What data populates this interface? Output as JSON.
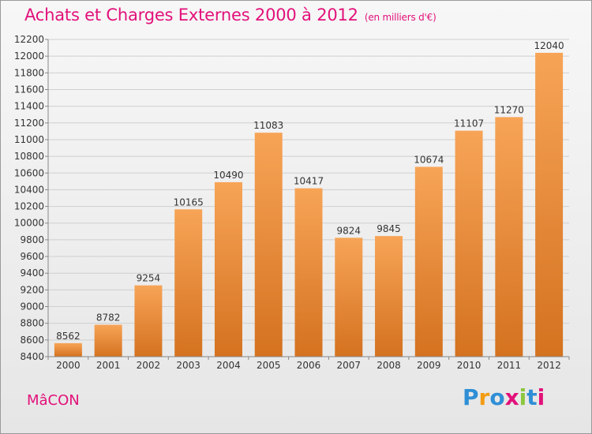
{
  "header": {
    "title": "Achats et Charges Externes 2000 à 2012",
    "unit": "(en milliers d'€)"
  },
  "footer": {
    "city": "MâCON",
    "brand": "Proxiti",
    "brand_letters": [
      "P",
      "r",
      "o",
      "x",
      "i",
      "t",
      "i"
    ],
    "brand_colors": [
      "#2f8fd6",
      "#f39c12",
      "#2f8fd6",
      "#e2117a",
      "#8cc63f",
      "#2f8fd6",
      "#e2117a"
    ]
  },
  "colors": {
    "title": "#e2117a",
    "bar_top": "#f7a457",
    "bar_bottom": "#d4721f",
    "grid": "#cfcfcf"
  },
  "chart_data": {
    "type": "bar",
    "title": "Achats et Charges Externes 2000 à 2012",
    "subtitle": "(en milliers d'€)",
    "categories": [
      "2000",
      "2001",
      "2002",
      "2003",
      "2004",
      "2005",
      "2006",
      "2007",
      "2008",
      "2009",
      "2010",
      "2011",
      "2012"
    ],
    "values": [
      8562,
      8782,
      9254,
      10165,
      10490,
      11083,
      10417,
      9824,
      9845,
      10674,
      11107,
      11270,
      12040
    ],
    "ylim": [
      8400,
      12200
    ],
    "yticks": [
      8400,
      8600,
      8800,
      9000,
      9200,
      9400,
      9600,
      9800,
      10000,
      10200,
      10400,
      10600,
      10800,
      11000,
      11200,
      11400,
      11600,
      11800,
      12000,
      12200
    ],
    "grid": true,
    "xlabel": "",
    "ylabel": ""
  }
}
